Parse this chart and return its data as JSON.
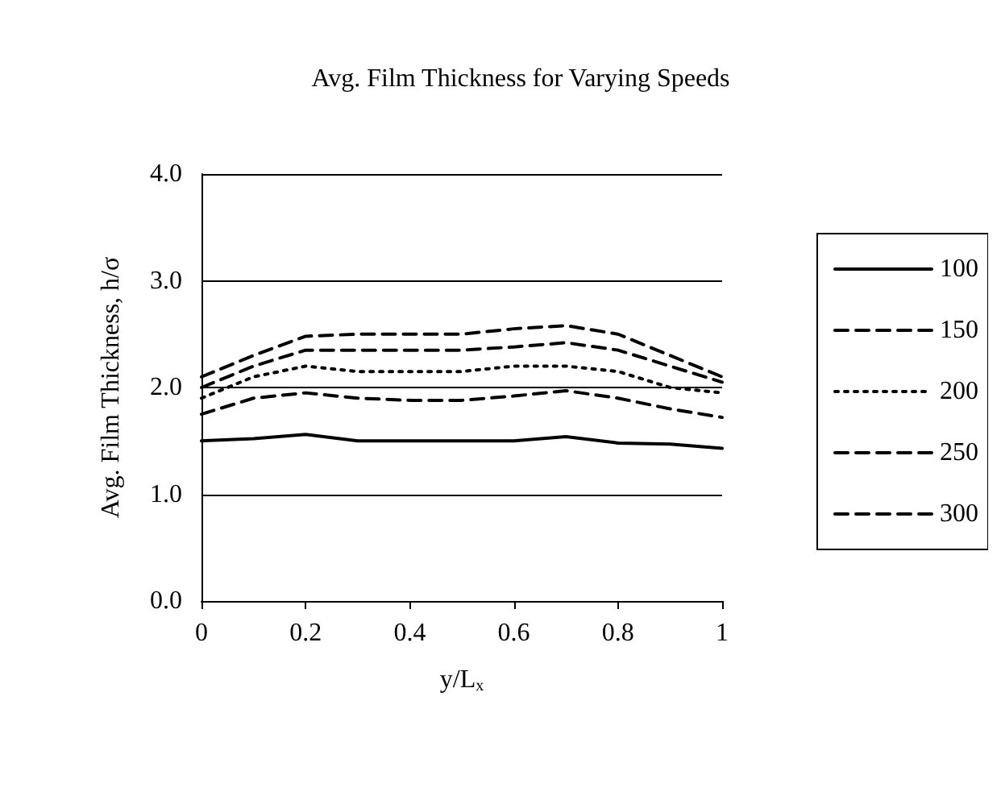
{
  "chart_data": {
    "type": "line",
    "title": "Avg. Film Thickness for Varying Speeds",
    "xlabel": "y/L$_{x}$",
    "ylabel": "Avg. Film Thickness, h/σ",
    "x": [
      0,
      0.1,
      0.2,
      0.3,
      0.4,
      0.5,
      0.6,
      0.7,
      0.8,
      0.9,
      1
    ],
    "xlim": [
      0,
      1
    ],
    "xticks": [
      0,
      0.2,
      0.4,
      0.6,
      0.8,
      1
    ],
    "ylim": [
      0,
      4
    ],
    "yticks": [
      {
        "value": 0,
        "label": "0.0"
      },
      {
        "value": 1,
        "label": "1.0"
      },
      {
        "value": 2,
        "label": "2.0"
      },
      {
        "value": 3,
        "label": "3.0"
      },
      {
        "value": 4,
        "label": "4.0"
      }
    ],
    "grid": "y",
    "legend": "right",
    "marker": "none",
    "series": [
      {
        "name": "100",
        "color": "#000000",
        "line_style": "solid",
        "values": [
          1.5,
          1.52,
          1.56,
          1.5,
          1.5,
          1.5,
          1.5,
          1.54,
          1.48,
          1.47,
          1.43
        ]
      },
      {
        "name": "150",
        "color": "#000000",
        "line_style": "dashed",
        "values": [
          1.75,
          1.9,
          1.95,
          1.9,
          1.88,
          1.88,
          1.92,
          1.97,
          1.9,
          1.8,
          1.72
        ]
      },
      {
        "name": "200",
        "color": "#000000",
        "line_style": "dotted",
        "values": [
          1.9,
          2.1,
          2.2,
          2.15,
          2.15,
          2.15,
          2.2,
          2.2,
          2.15,
          2.0,
          1.95
        ]
      },
      {
        "name": "250",
        "color": "#000000",
        "line_style": "dashed",
        "values": [
          2.0,
          2.2,
          2.35,
          2.35,
          2.35,
          2.35,
          2.38,
          2.42,
          2.35,
          2.2,
          2.05
        ]
      },
      {
        "name": "300",
        "color": "#000000",
        "line_style": "dashed",
        "values": [
          2.1,
          2.3,
          2.48,
          2.5,
          2.5,
          2.5,
          2.55,
          2.58,
          2.5,
          2.3,
          2.1
        ]
      }
    ]
  }
}
